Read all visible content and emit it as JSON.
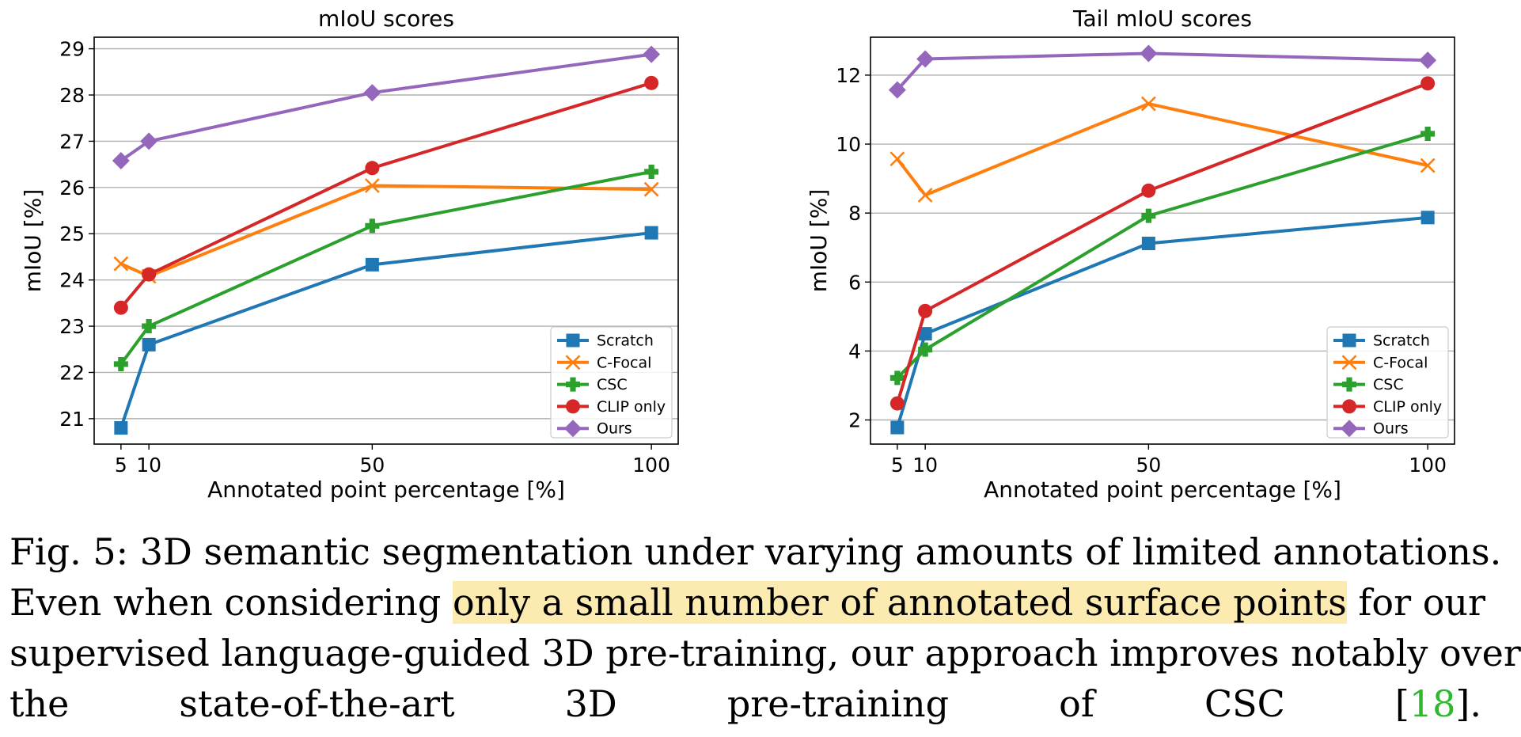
{
  "chart_data": [
    {
      "type": "line",
      "title": "mIoU scores",
      "xlabel": "Annotated point percentage [%]",
      "ylabel": "mIoU [%]",
      "x": [
        5,
        10,
        50,
        100
      ],
      "xticks": [
        5,
        10,
        50,
        100
      ],
      "xlim": [
        0.2,
        104.8
      ],
      "ylim": [
        20.45,
        29.25
      ],
      "yticks": [
        21,
        22,
        23,
        24,
        25,
        26,
        27,
        28,
        29
      ],
      "grid": "horizontal",
      "legend_position": "lower-right",
      "series": [
        {
          "name": "Scratch",
          "marker": "square",
          "color": "#1f77b4",
          "values": [
            20.8,
            22.6,
            24.33,
            25.02
          ]
        },
        {
          "name": "C-Focal",
          "marker": "x",
          "color": "#ff7f0e",
          "values": [
            24.35,
            24.08,
            26.04,
            25.96
          ]
        },
        {
          "name": "CSC",
          "marker": "plus",
          "color": "#2ca02c",
          "values": [
            22.18,
            23.0,
            25.17,
            26.34
          ]
        },
        {
          "name": "CLIP only",
          "marker": "circle",
          "color": "#d62728",
          "values": [
            23.4,
            24.12,
            26.42,
            28.26
          ]
        },
        {
          "name": "Ours",
          "marker": "diamond",
          "color": "#9467bd",
          "values": [
            26.58,
            27.0,
            28.05,
            28.88
          ]
        }
      ]
    },
    {
      "type": "line",
      "title": "Tail mIoU scores",
      "xlabel": "Annotated point percentage [%]",
      "ylabel": "mIoU [%]",
      "x": [
        5,
        10,
        50,
        100
      ],
      "xticks": [
        5,
        10,
        50,
        100
      ],
      "xlim": [
        0.2,
        104.8
      ],
      "ylim": [
        1.3,
        13.1
      ],
      "yticks": [
        2,
        4,
        6,
        8,
        10,
        12
      ],
      "grid": "horizontal",
      "legend_position": "lower-right",
      "series": [
        {
          "name": "Scratch",
          "marker": "square",
          "color": "#1f77b4",
          "values": [
            1.78,
            4.5,
            7.12,
            7.87
          ]
        },
        {
          "name": "C-Focal",
          "marker": "x",
          "color": "#ff7f0e",
          "values": [
            9.57,
            8.52,
            11.17,
            9.38
          ]
        },
        {
          "name": "CSC",
          "marker": "plus",
          "color": "#2ca02c",
          "values": [
            3.22,
            4.04,
            7.92,
            10.3
          ]
        },
        {
          "name": "CLIP only",
          "marker": "circle",
          "color": "#d62728",
          "values": [
            2.48,
            5.16,
            8.65,
            11.76
          ]
        },
        {
          "name": "Ours",
          "marker": "diamond",
          "color": "#9467bd",
          "values": [
            11.57,
            12.47,
            12.63,
            12.43
          ]
        }
      ]
    }
  ],
  "caption": {
    "line1": "Fig. 5: 3D semantic segmentation under varying amounts of limited annotations.",
    "line2_before": "Even when considering",
    "line2_highlight": "only a small number of annotated surface points",
    "line2_after": "for our",
    "line3": "supervised language-guided 3D pre-training, our approach improves notably over",
    "line4_before": "the state-of-the-art 3D pre-training of CSC [",
    "line4_ref": "18",
    "line4_after": "]."
  }
}
